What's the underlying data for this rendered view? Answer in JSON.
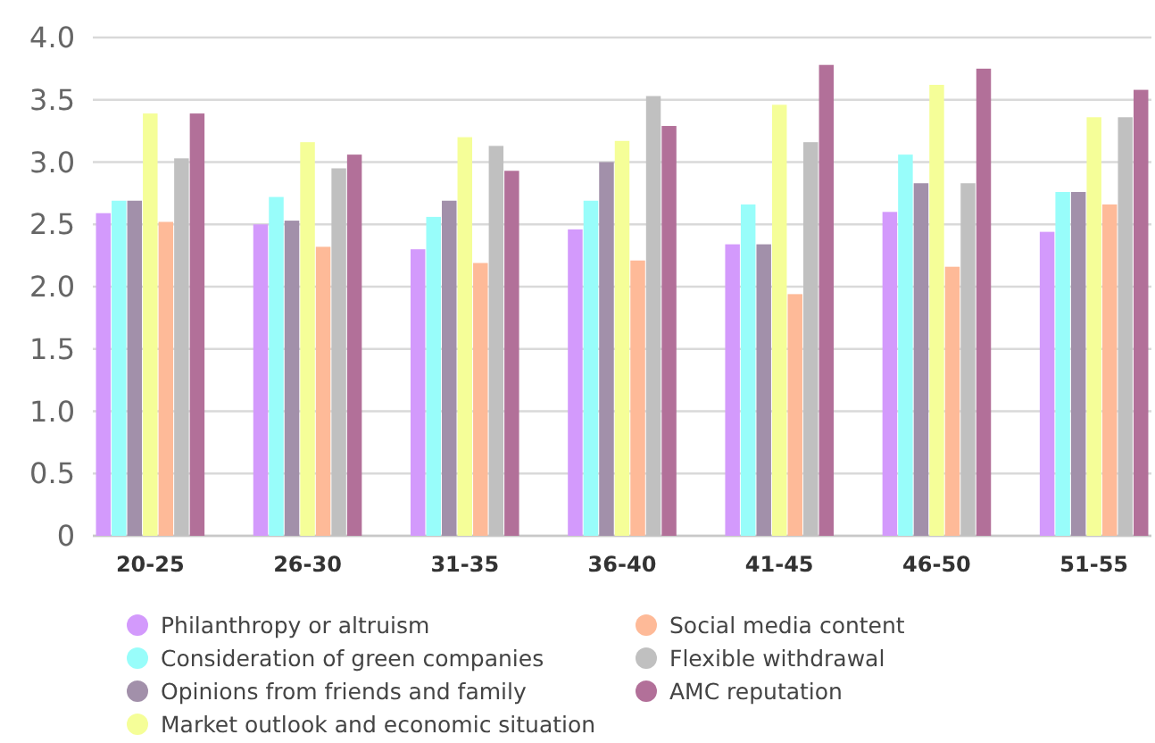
{
  "chart_data": {
    "type": "bar",
    "categories": [
      "20-25",
      "26-30",
      "31-35",
      "36-40",
      "41-45",
      "46-50",
      "51-55"
    ],
    "series": [
      {
        "name": "Philanthropy or altruism",
        "color": "#d39afc",
        "values": [
          2.59,
          2.5,
          2.3,
          2.46,
          2.34,
          2.6,
          2.44
        ]
      },
      {
        "name": "Consideration of green companies",
        "color": "#98fdfa",
        "values": [
          2.69,
          2.72,
          2.56,
          2.69,
          2.66,
          3.06,
          2.76
        ]
      },
      {
        "name": "Opinions from friends and family",
        "color": "#a290aa",
        "values": [
          2.69,
          2.53,
          2.69,
          3.0,
          2.34,
          2.83,
          2.76
        ]
      },
      {
        "name": "Market outlook and economic situation",
        "color": "#f5fe98",
        "values": [
          3.39,
          3.16,
          3.2,
          3.17,
          3.46,
          3.62,
          3.36
        ]
      },
      {
        "name": "Social media content",
        "color": "#feba98",
        "values": [
          2.52,
          2.32,
          2.19,
          2.21,
          1.94,
          2.16,
          2.66
        ]
      },
      {
        "name": "Flexible withdrawal",
        "color": "#c0c0c0",
        "values": [
          3.03,
          2.95,
          3.13,
          3.53,
          3.16,
          2.83,
          3.36
        ]
      },
      {
        "name": "AMC reputation",
        "color": "#b27099",
        "values": [
          3.39,
          3.06,
          2.93,
          3.29,
          3.78,
          3.75,
          3.58
        ]
      }
    ],
    "ylim": [
      0,
      4
    ],
    "yticks": [
      {
        "value": 0,
        "label": "0"
      },
      {
        "value": 0.5,
        "label": "0.5"
      },
      {
        "value": 1,
        "label": "1.0"
      },
      {
        "value": 1.5,
        "label": "1.5"
      },
      {
        "value": 2,
        "label": "2.0"
      },
      {
        "value": 2.5,
        "label": "2.5"
      },
      {
        "value": 3,
        "label": "3.0"
      },
      {
        "value": 3.5,
        "label": "3.5"
      },
      {
        "value": 4,
        "label": "4.0"
      }
    ],
    "grid": "y",
    "legend": "bottom"
  }
}
